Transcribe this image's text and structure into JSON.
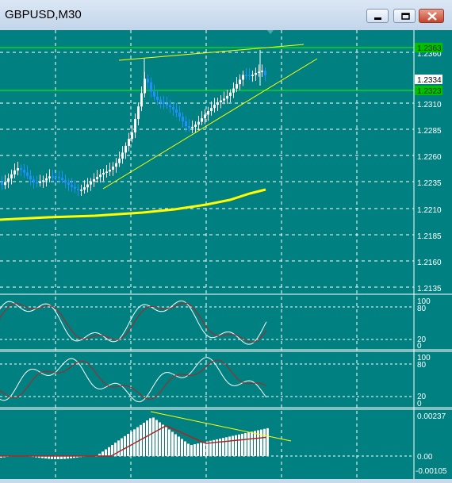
{
  "window": {
    "title": "GBPUSD,M30"
  },
  "price_scale": {
    "ticks": [
      "1.2360",
      "1.2310",
      "1.2285",
      "1.2260",
      "1.2235",
      "1.2210",
      "1.2185",
      "1.2160",
      "1.2135"
    ],
    "current_price": "1.2334",
    "line_price_1": "1.2363",
    "line_price_2": "1.2323"
  },
  "stoch1": {
    "levels": [
      "100",
      "80",
      "20",
      "0"
    ]
  },
  "stoch2": {
    "levels": [
      "100",
      "80",
      "20",
      "0"
    ]
  },
  "macd": {
    "levels": [
      "0.00237",
      "0.00",
      "-0.00105"
    ]
  },
  "colors": {
    "background": "#008080",
    "grid": "#ffffff",
    "bull_candle": "#ffffff",
    "bear_candle": "#1e90ff",
    "moving_average": "#ffff00",
    "trendline": "#ffff00",
    "horizontal_line": "#00ff00",
    "signal_line": "#b22222"
  }
}
